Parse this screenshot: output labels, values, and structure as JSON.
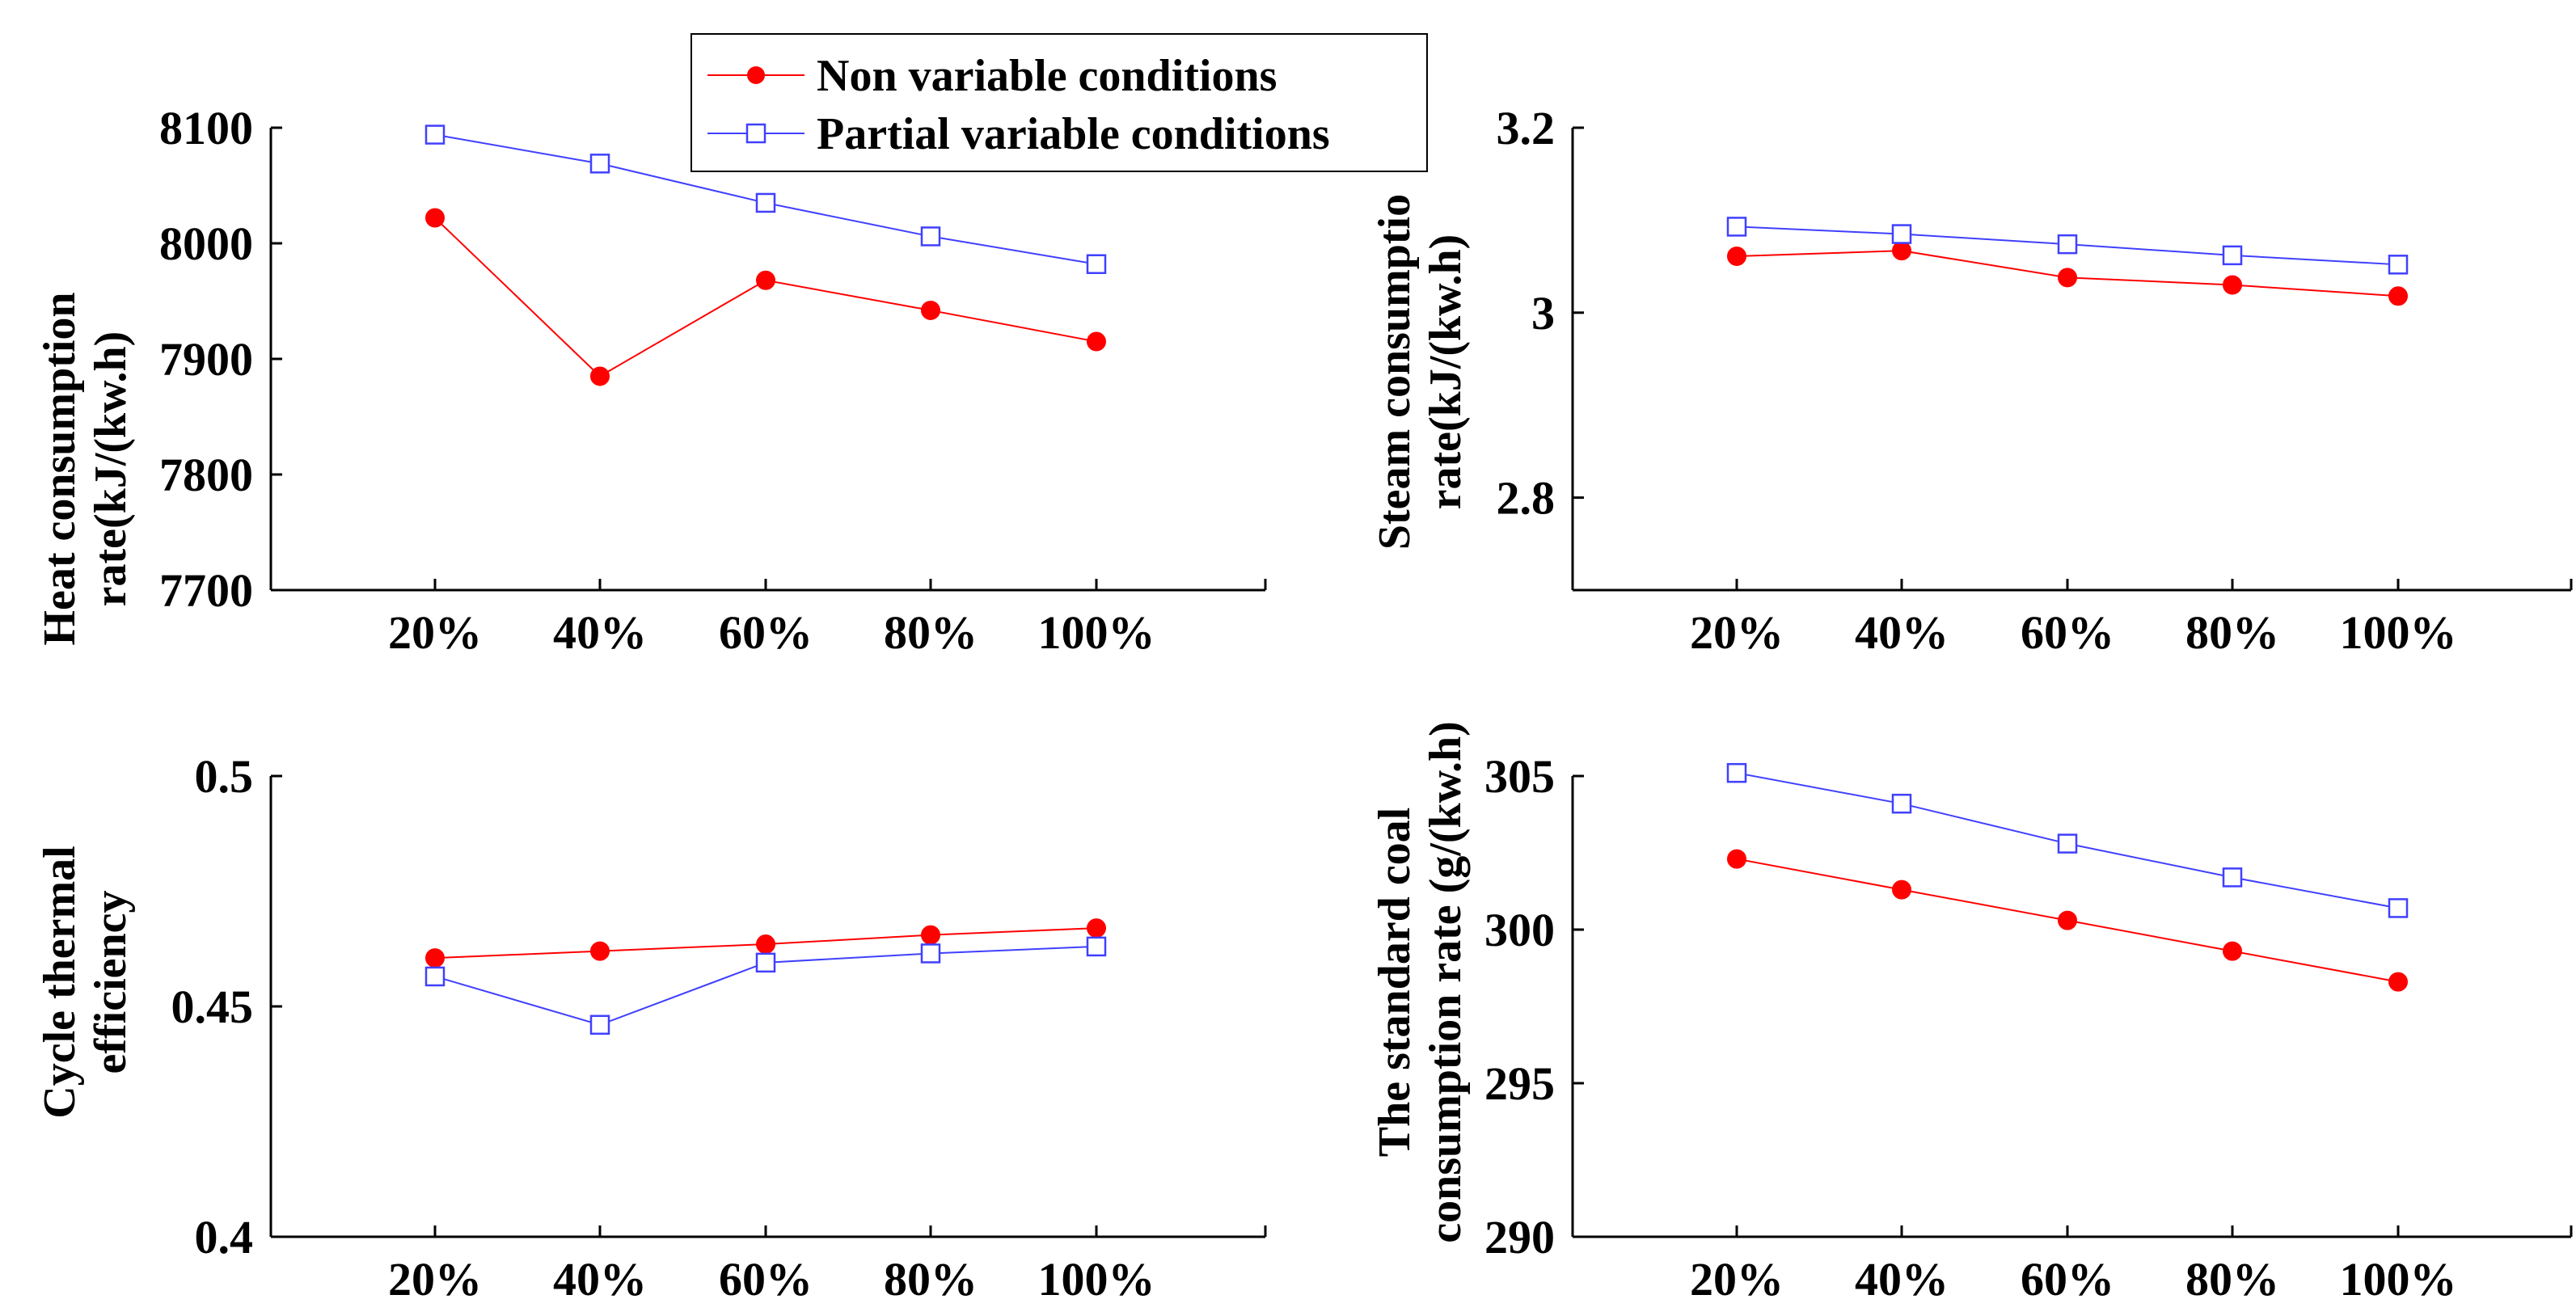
{
  "colors": {
    "non_variable": "#ff0000",
    "partial_variable": "#4040ff",
    "axis": "#000000"
  },
  "legend": {
    "non_variable": "Non variable conditions",
    "partial_variable": "Partial variable conditions"
  },
  "chart_data": [
    {
      "type": "line",
      "categories": [
        "20%",
        "40%",
        "60%",
        "80%",
        "100%"
      ],
      "ylabel": [
        "Heat consumption",
        "rate(kJ/(kw.h)"
      ],
      "ylim": [
        7700,
        8100
      ],
      "yticks": [
        "7700",
        "7800",
        "7900",
        "8000",
        "8100"
      ],
      "series": [
        {
          "name": "Non variable conditions",
          "values": [
            8022,
            7885,
            7968,
            7942,
            7915
          ]
        },
        {
          "name": "Partial variable conditions",
          "values": [
            8094,
            8069,
            8035,
            8006,
            7982
          ]
        }
      ]
    },
    {
      "type": "line",
      "categories": [
        "20%",
        "40%",
        "60%",
        "80%",
        "100%"
      ],
      "ylabel": [
        "Steam consumptio",
        "rate(kJ/(kw.h)"
      ],
      "ylim": [
        2.7,
        3.2
      ],
      "yticks": [
        "2.8",
        "3",
        "3.2"
      ],
      "series": [
        {
          "name": "Non variable conditions",
          "values": [
            3.061,
            3.067,
            3.038,
            3.03,
            3.018
          ]
        },
        {
          "name": "Partial variable conditions",
          "values": [
            3.093,
            3.085,
            3.074,
            3.062,
            3.052
          ]
        }
      ]
    },
    {
      "type": "line",
      "categories": [
        "20%",
        "40%",
        "60%",
        "80%",
        "100%"
      ],
      "ylabel": [
        "Cycle thermal",
        "efficiency"
      ],
      "ylim": [
        0.4,
        0.5
      ],
      "yticks": [
        "0.4",
        "0.45",
        "0.5"
      ],
      "series": [
        {
          "name": "Non variable conditions",
          "values": [
            0.4605,
            0.462,
            0.4635,
            0.4655,
            0.467
          ]
        },
        {
          "name": "Partial variable conditions",
          "values": [
            0.4565,
            0.446,
            0.4595,
            0.4615,
            0.463
          ]
        }
      ]
    },
    {
      "type": "line",
      "categories": [
        "20%",
        "40%",
        "60%",
        "80%",
        "100%"
      ],
      "ylabel": [
        "The standard coal",
        "consumption rate  (g/(kw.h)"
      ],
      "ylim": [
        290,
        305
      ],
      "yticks": [
        "290",
        "295",
        "300",
        "305"
      ],
      "series": [
        {
          "name": "Non variable conditions",
          "values": [
            302.3,
            301.3,
            300.3,
            299.3,
            298.3
          ]
        },
        {
          "name": "Partial variable conditions",
          "values": [
            305.1,
            304.1,
            302.8,
            301.7,
            300.7
          ]
        }
      ]
    }
  ]
}
